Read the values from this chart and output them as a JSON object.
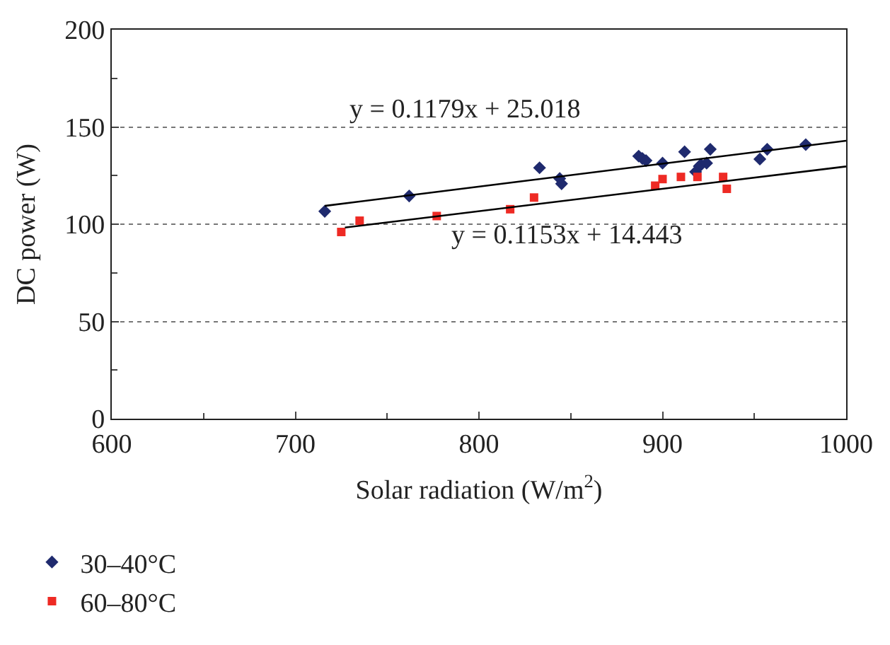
{
  "chart_data": {
    "type": "scatter",
    "xlabel": "Solar radiation (W/m$^{2}$)",
    "ylabel": "DC power (W)",
    "xlim": [
      600,
      1000
    ],
    "xticks": [
      600,
      {
        "value": 650,
        "label": null
      },
      700,
      {
        "value": 750,
        "label": null
      },
      800,
      {
        "value": 850,
        "label": null
      },
      900,
      {
        "value": 950,
        "label": null
      },
      1000
    ],
    "ylim": [
      0,
      200
    ],
    "yticks": [
      0,
      {
        "value": 25,
        "label": null
      },
      50,
      {
        "value": 75,
        "label": null
      },
      100,
      {
        "value": 125,
        "label": null
      },
      150,
      {
        "value": 175,
        "label": null
      },
      200
    ],
    "grid": "y",
    "legend": "bottom left",
    "series": [
      {
        "name": "30–40°C",
        "color": "#1f2a6e",
        "marker": "diamond",
        "x": [
          716,
          762,
          833,
          844,
          845,
          887,
          889,
          891,
          900,
          912,
          918,
          920,
          921,
          924,
          926,
          953,
          957,
          978
        ],
        "values": [
          106.6,
          114.5,
          129,
          123.5,
          120.8,
          135,
          133.8,
          132.7,
          131.4,
          137.2,
          126.9,
          129.8,
          130.6,
          131.4,
          138.5,
          133.5,
          138.5,
          140.9
        ]
      },
      {
        "name": "60–80°C",
        "color": "#ee2a24",
        "marker": "square",
        "x": [
          725,
          735,
          777,
          817,
          830,
          896,
          900,
          910,
          919,
          933,
          935
        ],
        "values": [
          96,
          101.8,
          104.2,
          107.7,
          113.7,
          119.8,
          123.2,
          124.3,
          124.3,
          124.3,
          118.2
        ]
      },
      {
        "type": "line",
        "color": "#000000",
        "x": [
          716,
          1000
        ],
        "values": [
          109.4,
          142.9
        ]
      },
      {
        "type": "line",
        "color": "#000000",
        "x": [
          727,
          1000
        ],
        "values": [
          98.3,
          129.7
        ]
      }
    ],
    "annotations": [
      "y = 0.1179x + 25.018",
      "y = 0.1153x + 14.443"
    ]
  }
}
